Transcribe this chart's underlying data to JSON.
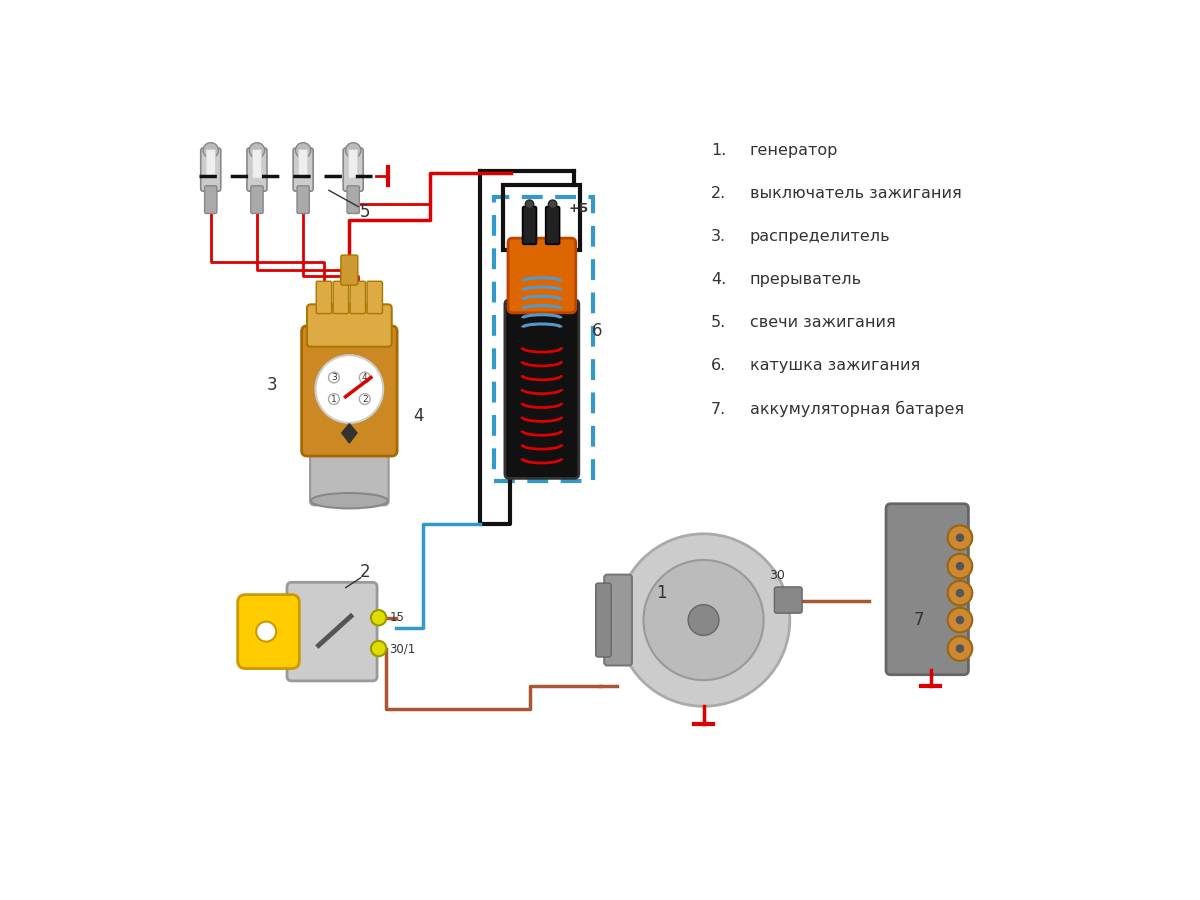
{
  "background_color": "#ffffff",
  "legend_items": [
    {
      "num": "1.",
      "text": "генератор"
    },
    {
      "num": "2.",
      "text": "выключатель зажигания"
    },
    {
      "num": "3.",
      "text": "распределитель"
    },
    {
      "num": "4.",
      "text": "прерыватель"
    },
    {
      "num": "5.",
      "text": "свечи зажигания"
    },
    {
      "num": "6.",
      "text": "катушка зажигания"
    },
    {
      "num": "7.",
      "text": "аккумуляторная батарея"
    }
  ],
  "text_color": "#333333",
  "red_color": "#dd0000",
  "blue_border_color": "#3399cc",
  "brown_wire_color": "#aa5533"
}
